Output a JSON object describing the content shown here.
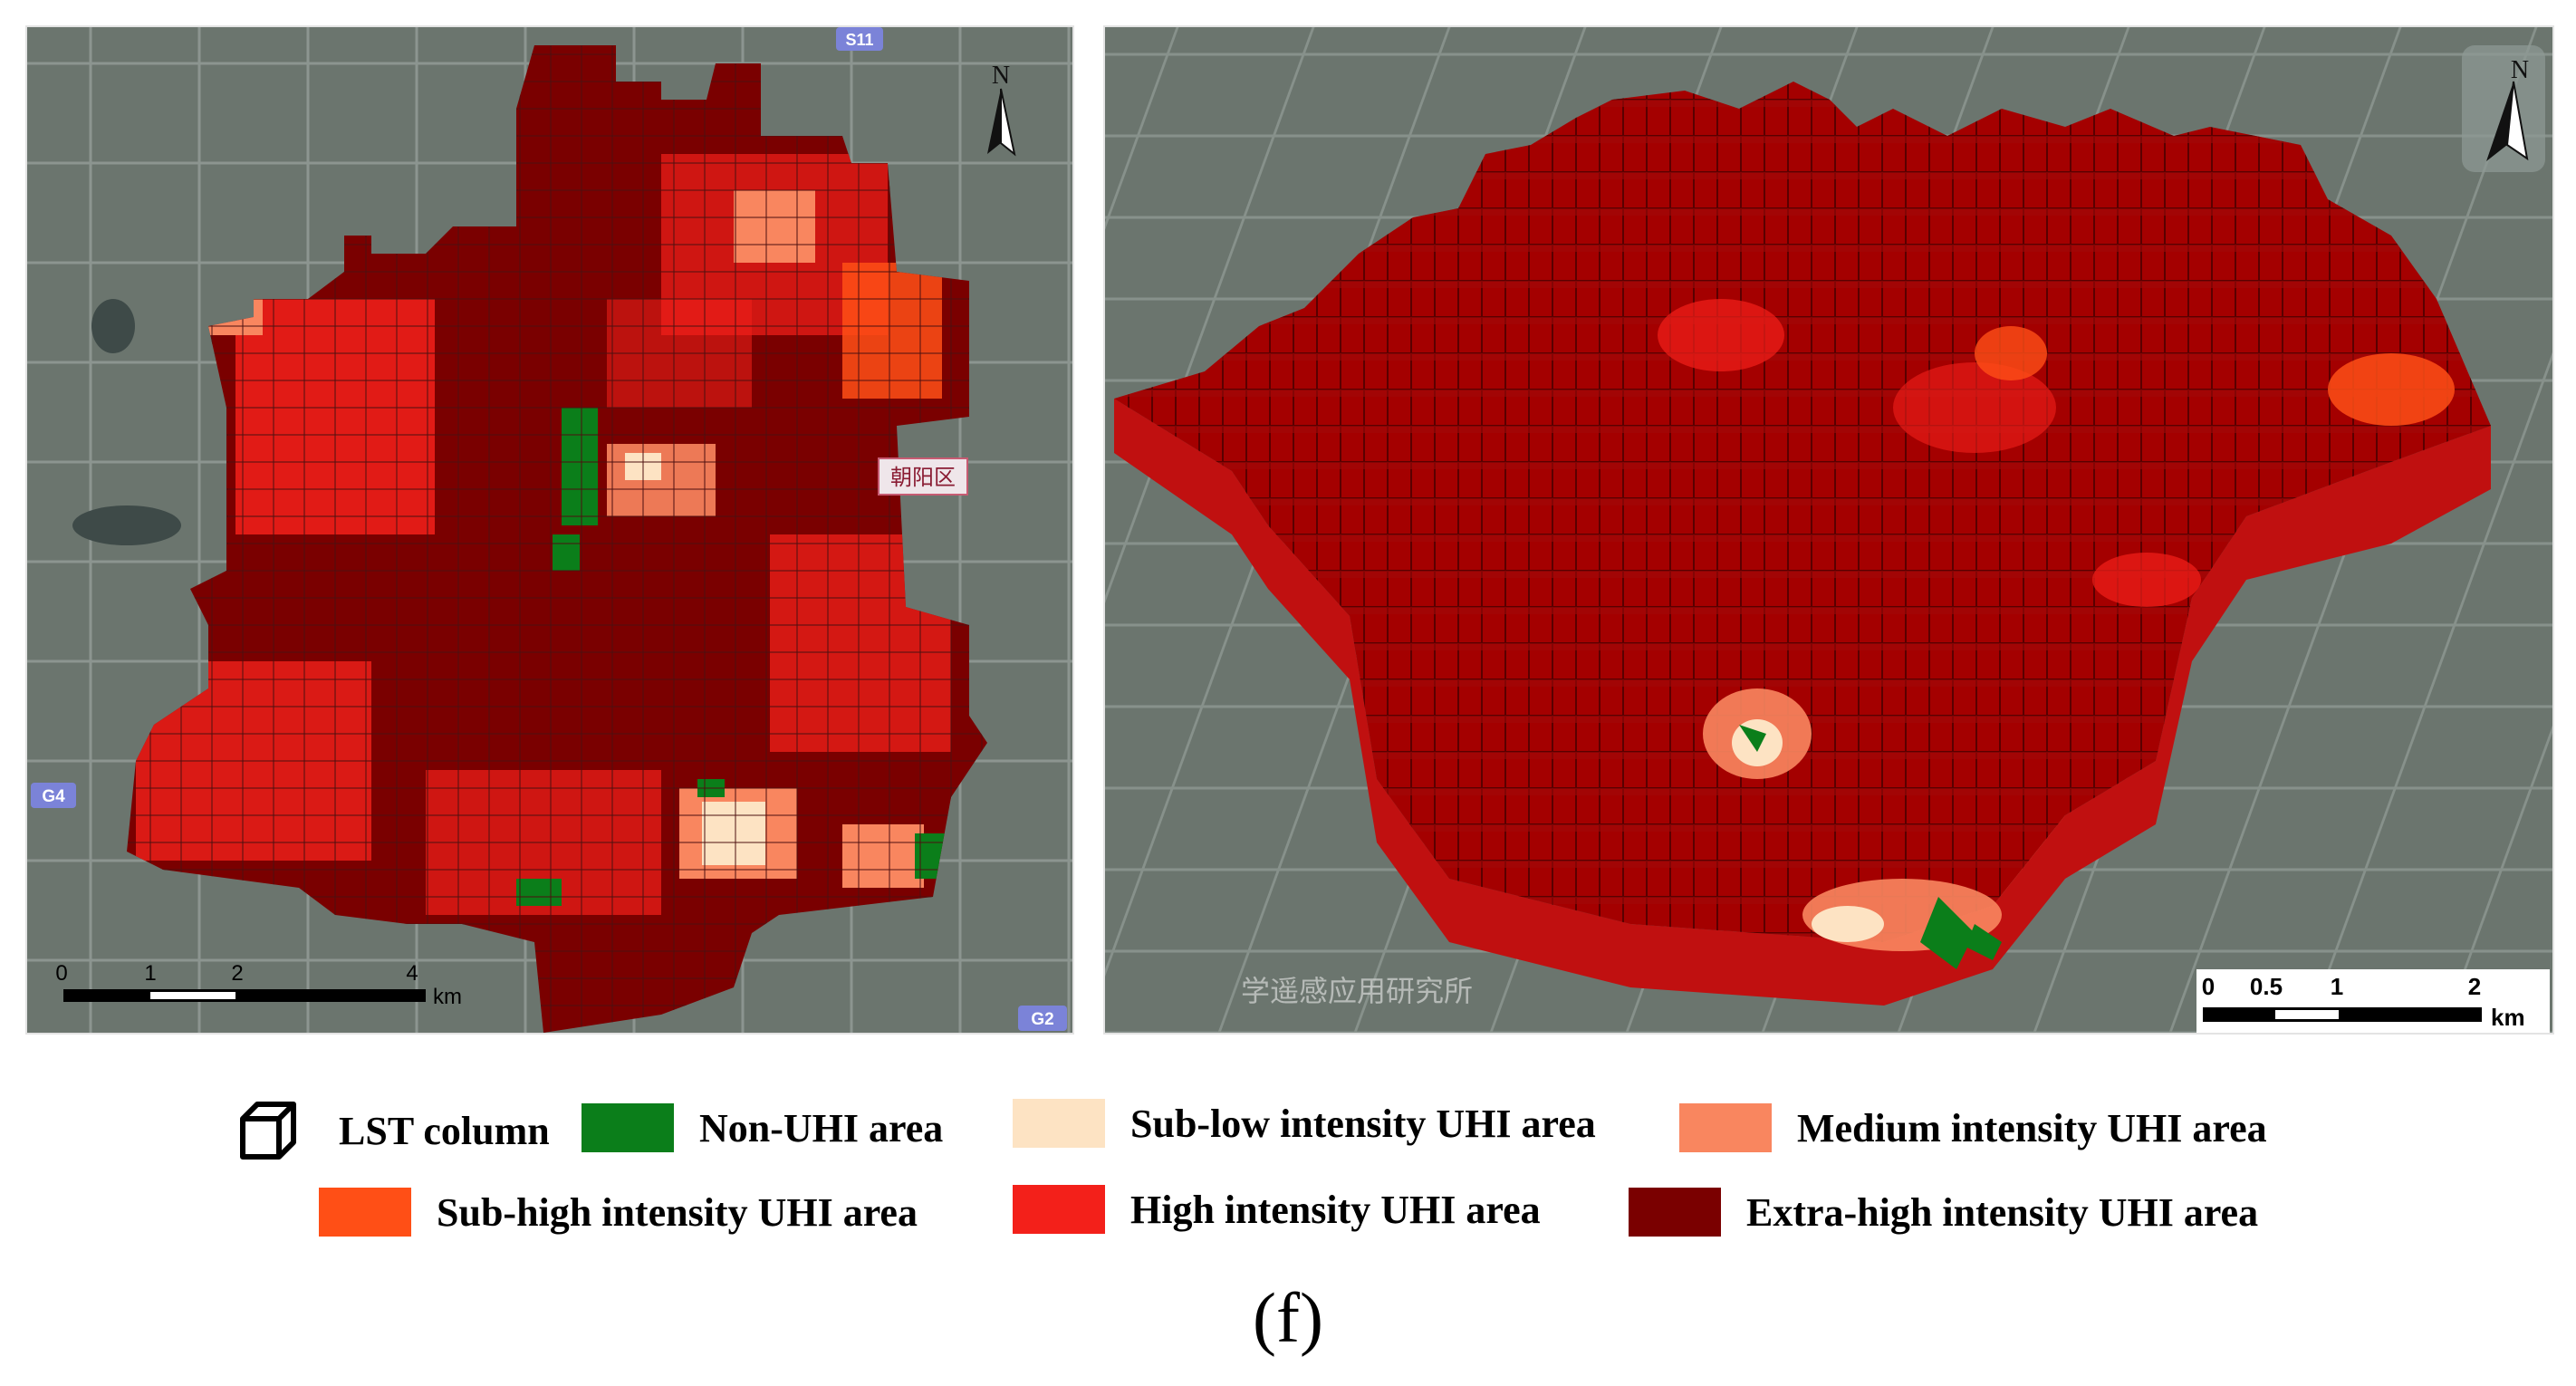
{
  "colors": {
    "non_uhi": "#0b7e1a",
    "sub_low": "#fde3c3",
    "medium": "#f9865f",
    "sub_high": "#ff4f16",
    "high": "#f3201a",
    "extra_high": "#7a0000",
    "satellite_base": "#6b756e"
  },
  "map_2d": {
    "north_label": "N",
    "scale_ticks": [
      "0",
      "1",
      "2",
      "4"
    ],
    "scale_unit": "km",
    "road_badges": [
      "S11",
      "G4",
      "G2"
    ],
    "place_labels": [
      "朝阳区"
    ]
  },
  "map_3d": {
    "north_label": "N",
    "scale_ticks": [
      "0",
      "0.5",
      "1",
      "2"
    ],
    "scale_unit": "km",
    "watermark": "学遥感应用研究所"
  },
  "legend": {
    "items": [
      {
        "label": "LST column",
        "icon": "cube-icon"
      },
      {
        "label": "Non-UHI area",
        "swatch": "#0b7e1a"
      },
      {
        "label": "Sub-low intensity UHI area",
        "swatch": "#fde3c3"
      },
      {
        "label": "Medium intensity UHI area",
        "swatch": "#f9865f"
      },
      {
        "label": "Sub-high intensity UHI area",
        "swatch": "#ff4f16"
      },
      {
        "label": "High intensity UHI area",
        "swatch": "#f3201a"
      },
      {
        "label": "Extra-high intensity UHI area",
        "swatch": "#7a0000"
      }
    ]
  },
  "caption": "(f)"
}
